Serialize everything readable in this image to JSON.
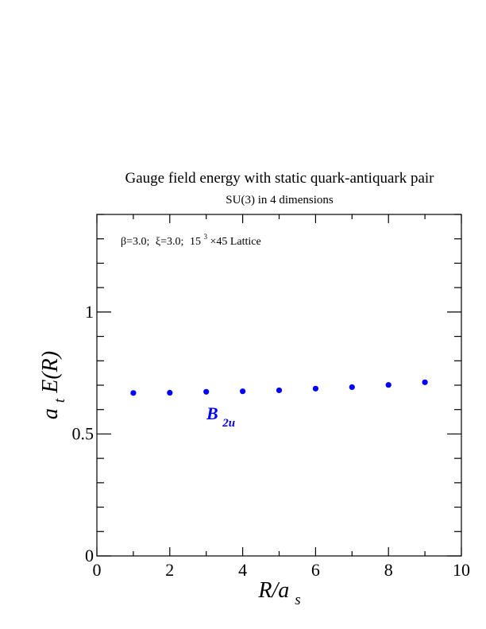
{
  "chart_data": {
    "type": "scatter",
    "title": "Gauge field energy with static quark-antiquark pair",
    "subtitle": "SU(3) in 4 dimensions",
    "annotation": {
      "beta": "β=3.0;",
      "xi": "ξ=3.0;",
      "lattice_base": "15",
      "lattice_exp": "3",
      "lattice_rest": "×45 Lattice"
    },
    "xlabel": {
      "main": "R/a",
      "sub": "s"
    },
    "ylabel": {
      "pre": "a",
      "sub": "t",
      "main": "E(R)"
    },
    "xlim": [
      0,
      10
    ],
    "ylim": [
      0,
      1.4
    ],
    "x_ticks": [
      0,
      2,
      4,
      6,
      8,
      10
    ],
    "x_tick_labels": [
      "0",
      "2",
      "4",
      "6",
      "8",
      "10"
    ],
    "y_ticks": [
      0,
      0.5,
      1
    ],
    "y_tick_labels": [
      "0",
      "0.5",
      "1"
    ],
    "grid": false,
    "colors": {
      "series": "#0000ff",
      "axis": "#000000"
    },
    "series": [
      {
        "name": "B",
        "name_sub": "2u",
        "x": [
          1,
          2,
          3,
          4,
          5,
          6,
          7,
          8,
          9
        ],
        "y": [
          0.668,
          0.669,
          0.673,
          0.675,
          0.679,
          0.686,
          0.692,
          0.701,
          0.712
        ]
      }
    ]
  }
}
